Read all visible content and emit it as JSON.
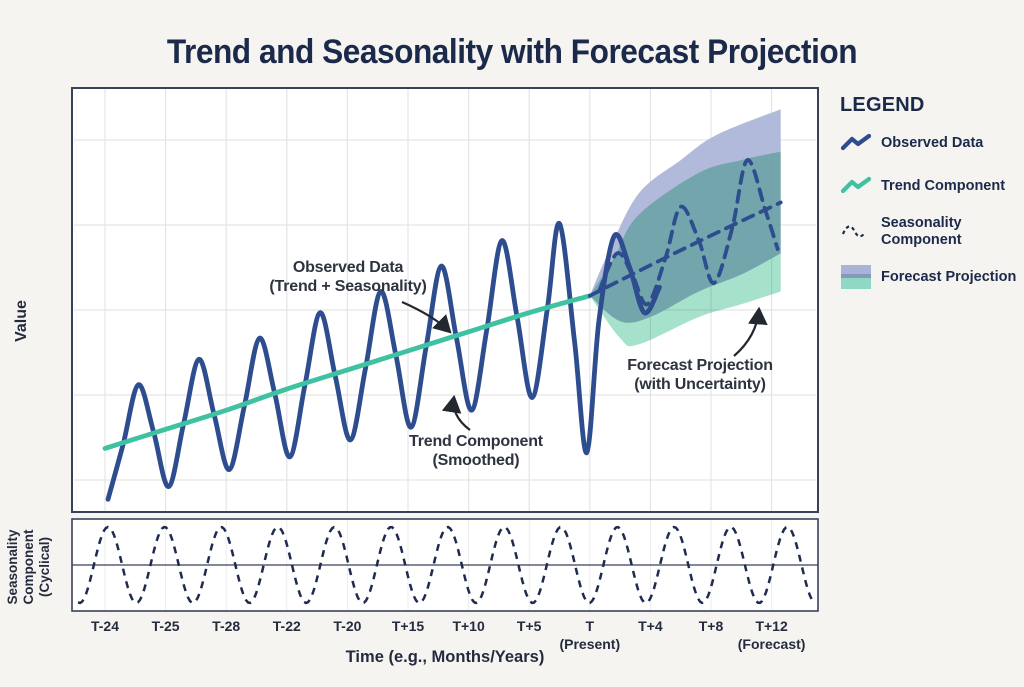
{
  "title": "Trend and Seasonality with Forecast Projection",
  "colors": {
    "background": "#f6f4f0",
    "plot_background": "#ffffff",
    "border": "#38415a",
    "title_text": "#1b2a4a",
    "observed_line": "#2d4d8e",
    "trend_line": "#3fc2a1",
    "forecast_dash": "#2d4d8e",
    "band_trend": "#a9b3d6",
    "band_seasonal": "#97ddc2",
    "grid": "#e5e5e8",
    "annotation_text": "#2e3340",
    "arrow": "#23272f"
  },
  "axes": {
    "y_label": "Value",
    "x_label": "Time (e.g., Months/Years)",
    "seasonality_panel_label": "Seasonality\nComponent\n(Cyclical)"
  },
  "annotations": {
    "observed": "Observed Data\n(Trend + Seasonality)",
    "trend": "Trend Component\n(Smoothed)",
    "forecast": "Forecast Projection\n(with Uncertainty)"
  },
  "legend": {
    "title": "LEGEND",
    "items": [
      {
        "label": "Observed Data",
        "icon": "observed-line"
      },
      {
        "label": "Trend Component",
        "icon": "trend-line"
      },
      {
        "label": "Seasonality Component",
        "icon": "seasonality-wave"
      },
      {
        "label": "Forecast Projection",
        "icon": "forecast-band"
      }
    ]
  },
  "chart_data": {
    "type": "line",
    "title": "Trend and Seasonality with Forecast Projection",
    "xlabel": "Time (e.g., Months/Years)",
    "ylabel": "Value",
    "x_ticks": [
      "T-24",
      "T-25",
      "T-28",
      "T-22",
      "T-20",
      "T+15",
      "T+10",
      "T+5",
      "T\n(Present)",
      "T+4",
      "T+8",
      "T+12\n(Forecast)"
    ],
    "present_tick_index": 8,
    "y_range": [
      0,
      100
    ],
    "grid": true,
    "legend_position": "right",
    "series": [
      {
        "name": "Observed Data (Trend + Seasonality)",
        "style": "solid",
        "color": "#2d4d8e",
        "points": [
          [
            0.05,
            3
          ],
          [
            0.3,
            16
          ],
          [
            0.55,
            30
          ],
          [
            0.8,
            19
          ],
          [
            1.05,
            6
          ],
          [
            1.3,
            21
          ],
          [
            1.55,
            36
          ],
          [
            1.8,
            23
          ],
          [
            2.05,
            10
          ],
          [
            2.3,
            25
          ],
          [
            2.55,
            41
          ],
          [
            2.8,
            28
          ],
          [
            3.05,
            13
          ],
          [
            3.3,
            30
          ],
          [
            3.55,
            47
          ],
          [
            3.8,
            32
          ],
          [
            4.05,
            17
          ],
          [
            4.3,
            34
          ],
          [
            4.55,
            52
          ],
          [
            4.8,
            37
          ],
          [
            5.05,
            20
          ],
          [
            5.3,
            39
          ],
          [
            5.55,
            58
          ],
          [
            5.8,
            41
          ],
          [
            6.05,
            24
          ],
          [
            6.3,
            43
          ],
          [
            6.55,
            64
          ],
          [
            6.8,
            46
          ],
          [
            7.05,
            27
          ],
          [
            7.3,
            48
          ],
          [
            7.5,
            68
          ],
          [
            7.75,
            40
          ],
          [
            7.95,
            14
          ],
          [
            8.15,
            45
          ],
          [
            8.4,
            65
          ],
          [
            8.65,
            58
          ],
          [
            8.9,
            47
          ],
          [
            9.15,
            53
          ]
        ]
      },
      {
        "name": "Trend Component (Smoothed)",
        "style": "solid",
        "color": "#3fc2a1",
        "points": [
          [
            0,
            15
          ],
          [
            1,
            19.5
          ],
          [
            2,
            24
          ],
          [
            3,
            29
          ],
          [
            4,
            33.5
          ],
          [
            5,
            38
          ],
          [
            6,
            42.5
          ],
          [
            7,
            47
          ],
          [
            8,
            51
          ]
        ]
      },
      {
        "name": "Forecast Trend (dashed)",
        "style": "dashed",
        "color": "#2d4d8e",
        "points": [
          [
            8,
            51
          ],
          [
            9,
            58.2
          ],
          [
            10,
            65.2
          ],
          [
            11.15,
            73
          ]
        ]
      },
      {
        "name": "Forecast Seasonality (dashed)",
        "style": "dashed",
        "color": "#2d4d8e",
        "points": [
          [
            8.15,
            52
          ],
          [
            8.45,
            61
          ],
          [
            8.7,
            56
          ],
          [
            8.95,
            49
          ],
          [
            9.25,
            60
          ],
          [
            9.5,
            72
          ],
          [
            9.8,
            64
          ],
          [
            10.05,
            54
          ],
          [
            10.35,
            67
          ],
          [
            10.6,
            83
          ],
          [
            10.9,
            71
          ],
          [
            11.1,
            62
          ]
        ]
      }
    ],
    "bands": [
      {
        "name": "Forecast Projection - trend uncertainty",
        "color": "#a9b3d6",
        "opacity": 0.9,
        "blend": "normal",
        "upper": [
          [
            8,
            51
          ],
          [
            8.3,
            61
          ],
          [
            8.8,
            75
          ],
          [
            9.5,
            83
          ],
          [
            10.1,
            89
          ],
          [
            11.15,
            95
          ]
        ],
        "lower": [
          [
            8,
            51
          ],
          [
            8.5,
            45
          ],
          [
            9,
            46
          ],
          [
            9.8,
            52
          ],
          [
            10.5,
            56
          ],
          [
            11.15,
            61
          ]
        ]
      },
      {
        "name": "Forecast Projection - seasonal uncertainty",
        "color": "#97ddc2",
        "opacity": 0.85,
        "blend": "multiply",
        "upper": [
          [
            8,
            51
          ],
          [
            8.4,
            60
          ],
          [
            8.8,
            70
          ],
          [
            9.8,
            80
          ],
          [
            10.5,
            83
          ],
          [
            11.15,
            85
          ]
        ],
        "lower": [
          [
            8,
            51
          ],
          [
            8.5,
            41
          ],
          [
            8.8,
            39.5
          ],
          [
            9.8,
            46
          ],
          [
            10.5,
            49
          ],
          [
            11.15,
            52
          ]
        ]
      }
    ],
    "seasonality_panel": {
      "type": "sine",
      "cycles": 13,
      "range": [
        -1,
        1
      ],
      "line_style": "dashed",
      "color": "#1e2b4f"
    }
  }
}
